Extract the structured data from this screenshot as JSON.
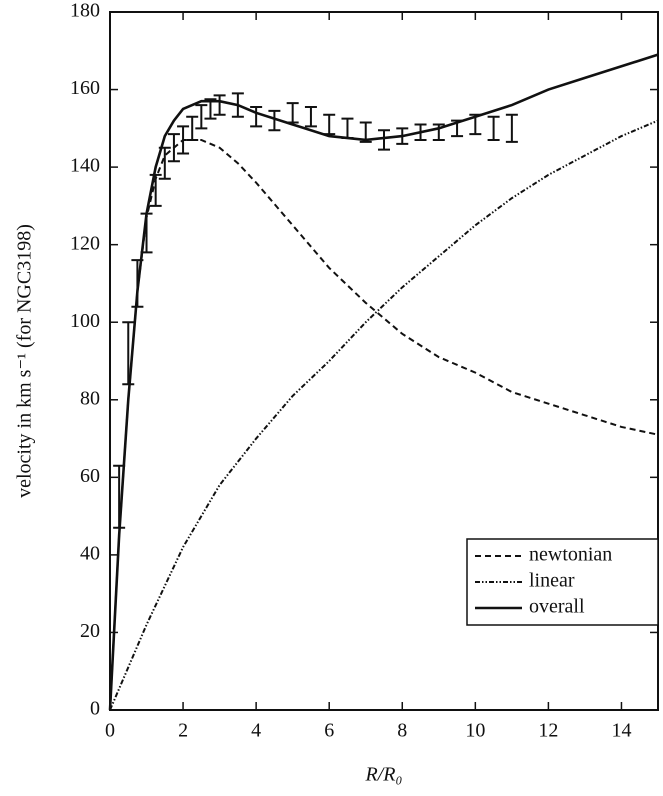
{
  "chart_data": {
    "type": "line",
    "xlabel": "R/R₀",
    "ylabel": "velocity in km s⁻¹ (for NGC3198)",
    "xlim": [
      0,
      15
    ],
    "xticks": [
      0,
      2,
      4,
      6,
      8,
      10,
      12,
      14
    ],
    "ylim": [
      0,
      180
    ],
    "yticks": [
      0,
      20,
      40,
      60,
      80,
      100,
      120,
      140,
      160,
      180
    ],
    "legend": "lower right",
    "series": [
      {
        "name": "newtonian",
        "color": "#111111",
        "dash": "6,4",
        "x": [
          0,
          0.25,
          0.5,
          0.75,
          1,
          1.25,
          1.5,
          1.75,
          2,
          2.5,
          3,
          3.5,
          4,
          5,
          6,
          7,
          8,
          9,
          10,
          11,
          12,
          13,
          14,
          15
        ],
        "values": [
          0,
          45,
          80,
          108,
          127,
          137,
          143,
          145,
          147,
          147,
          145,
          141,
          136,
          125,
          114,
          105,
          97,
          91,
          87,
          82,
          79,
          76,
          73,
          71
        ]
      },
      {
        "name": "linear",
        "color": "#111111",
        "dash": "5,2,1.5,2,1.5,2",
        "x": [
          0,
          1,
          2,
          3,
          4,
          5,
          6,
          7,
          8,
          9,
          10,
          11,
          12,
          13,
          14,
          15
        ],
        "values": [
          0,
          22,
          42,
          58,
          70,
          81,
          90,
          100,
          109,
          117,
          125,
          132,
          138,
          143,
          148,
          152
        ]
      },
      {
        "name": "overall",
        "color": "#111111",
        "dash": "none",
        "x": [
          0,
          0.25,
          0.5,
          0.75,
          1,
          1.25,
          1.5,
          1.75,
          2,
          2.5,
          3,
          3.5,
          4,
          5,
          6,
          7,
          8,
          9,
          10,
          11,
          12,
          13,
          14,
          15
        ],
        "values": [
          0,
          45,
          80,
          108,
          128,
          140,
          148,
          152,
          155,
          157,
          157,
          156,
          154,
          151,
          148,
          147,
          148,
          150,
          153,
          156,
          160,
          163,
          166,
          169
        ]
      }
    ],
    "observations": {
      "color": "#111111",
      "x": [
        0.25,
        0.5,
        0.75,
        1.0,
        1.25,
        1.5,
        1.75,
        2.0,
        2.25,
        2.5,
        2.75,
        3.0,
        3.5,
        4.0,
        4.5,
        5.0,
        5.5,
        6.0,
        6.5,
        7.0,
        7.5,
        8.0,
        8.5,
        9.0,
        9.5,
        10.0,
        10.5,
        11.0
      ],
      "values": [
        55,
        92,
        110,
        123,
        134,
        141,
        145,
        147,
        150,
        153,
        155,
        156,
        156,
        153,
        152,
        154,
        153,
        151,
        150,
        149,
        147,
        148,
        149,
        149,
        150,
        151,
        150,
        150
      ],
      "errors": [
        8,
        8,
        6,
        5,
        4,
        4,
        3.5,
        3.5,
        3,
        3,
        2.5,
        2.5,
        3,
        2.5,
        2.5,
        2.5,
        2.5,
        2.5,
        2.5,
        2.5,
        2.5,
        2,
        2,
        2,
        2,
        2.5,
        3,
        3.5
      ]
    }
  }
}
